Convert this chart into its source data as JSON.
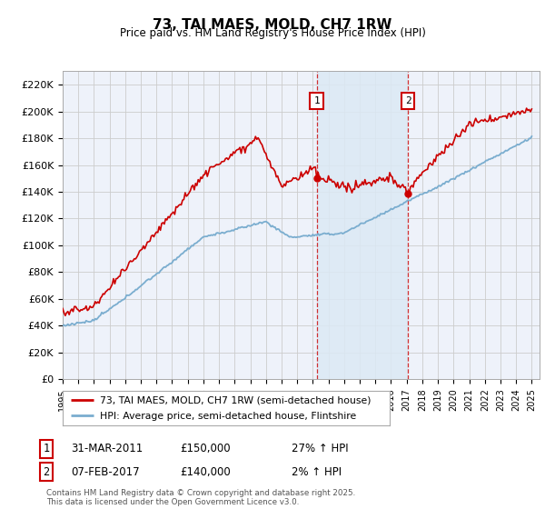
{
  "title": "73, TAI MAES, MOLD, CH7 1RW",
  "subtitle": "Price paid vs. HM Land Registry's House Price Index (HPI)",
  "ylabel_ticks": [
    "£0",
    "£20K",
    "£40K",
    "£60K",
    "£80K",
    "£100K",
    "£120K",
    "£140K",
    "£160K",
    "£180K",
    "£200K",
    "£220K"
  ],
  "ytick_values": [
    0,
    20000,
    40000,
    60000,
    80000,
    100000,
    120000,
    140000,
    160000,
    180000,
    200000,
    220000
  ],
  "ylim": [
    0,
    230000
  ],
  "xlim_start": 1995.0,
  "xlim_end": 2025.5,
  "marker1_x": 2011.25,
  "marker1_y": 150000,
  "marker2_x": 2017.08,
  "marker2_y": 140000,
  "hpi_color": "#7aadcf",
  "price_color": "#cc0000",
  "shade_color": "#dce9f5",
  "background_color": "#eef2fa",
  "grid_color": "#cccccc",
  "annotation_table": [
    {
      "num": "1",
      "date": "31-MAR-2011",
      "price": "£150,000",
      "hpi": "27% ↑ HPI"
    },
    {
      "num": "2",
      "date": "07-FEB-2017",
      "price": "£140,000",
      "hpi": "2% ↑ HPI"
    }
  ],
  "legend_line1": "73, TAI MAES, MOLD, CH7 1RW (semi-detached house)",
  "legend_line2": "HPI: Average price, semi-detached house, Flintshire",
  "footer": "Contains HM Land Registry data © Crown copyright and database right 2025.\nThis data is licensed under the Open Government Licence v3.0."
}
